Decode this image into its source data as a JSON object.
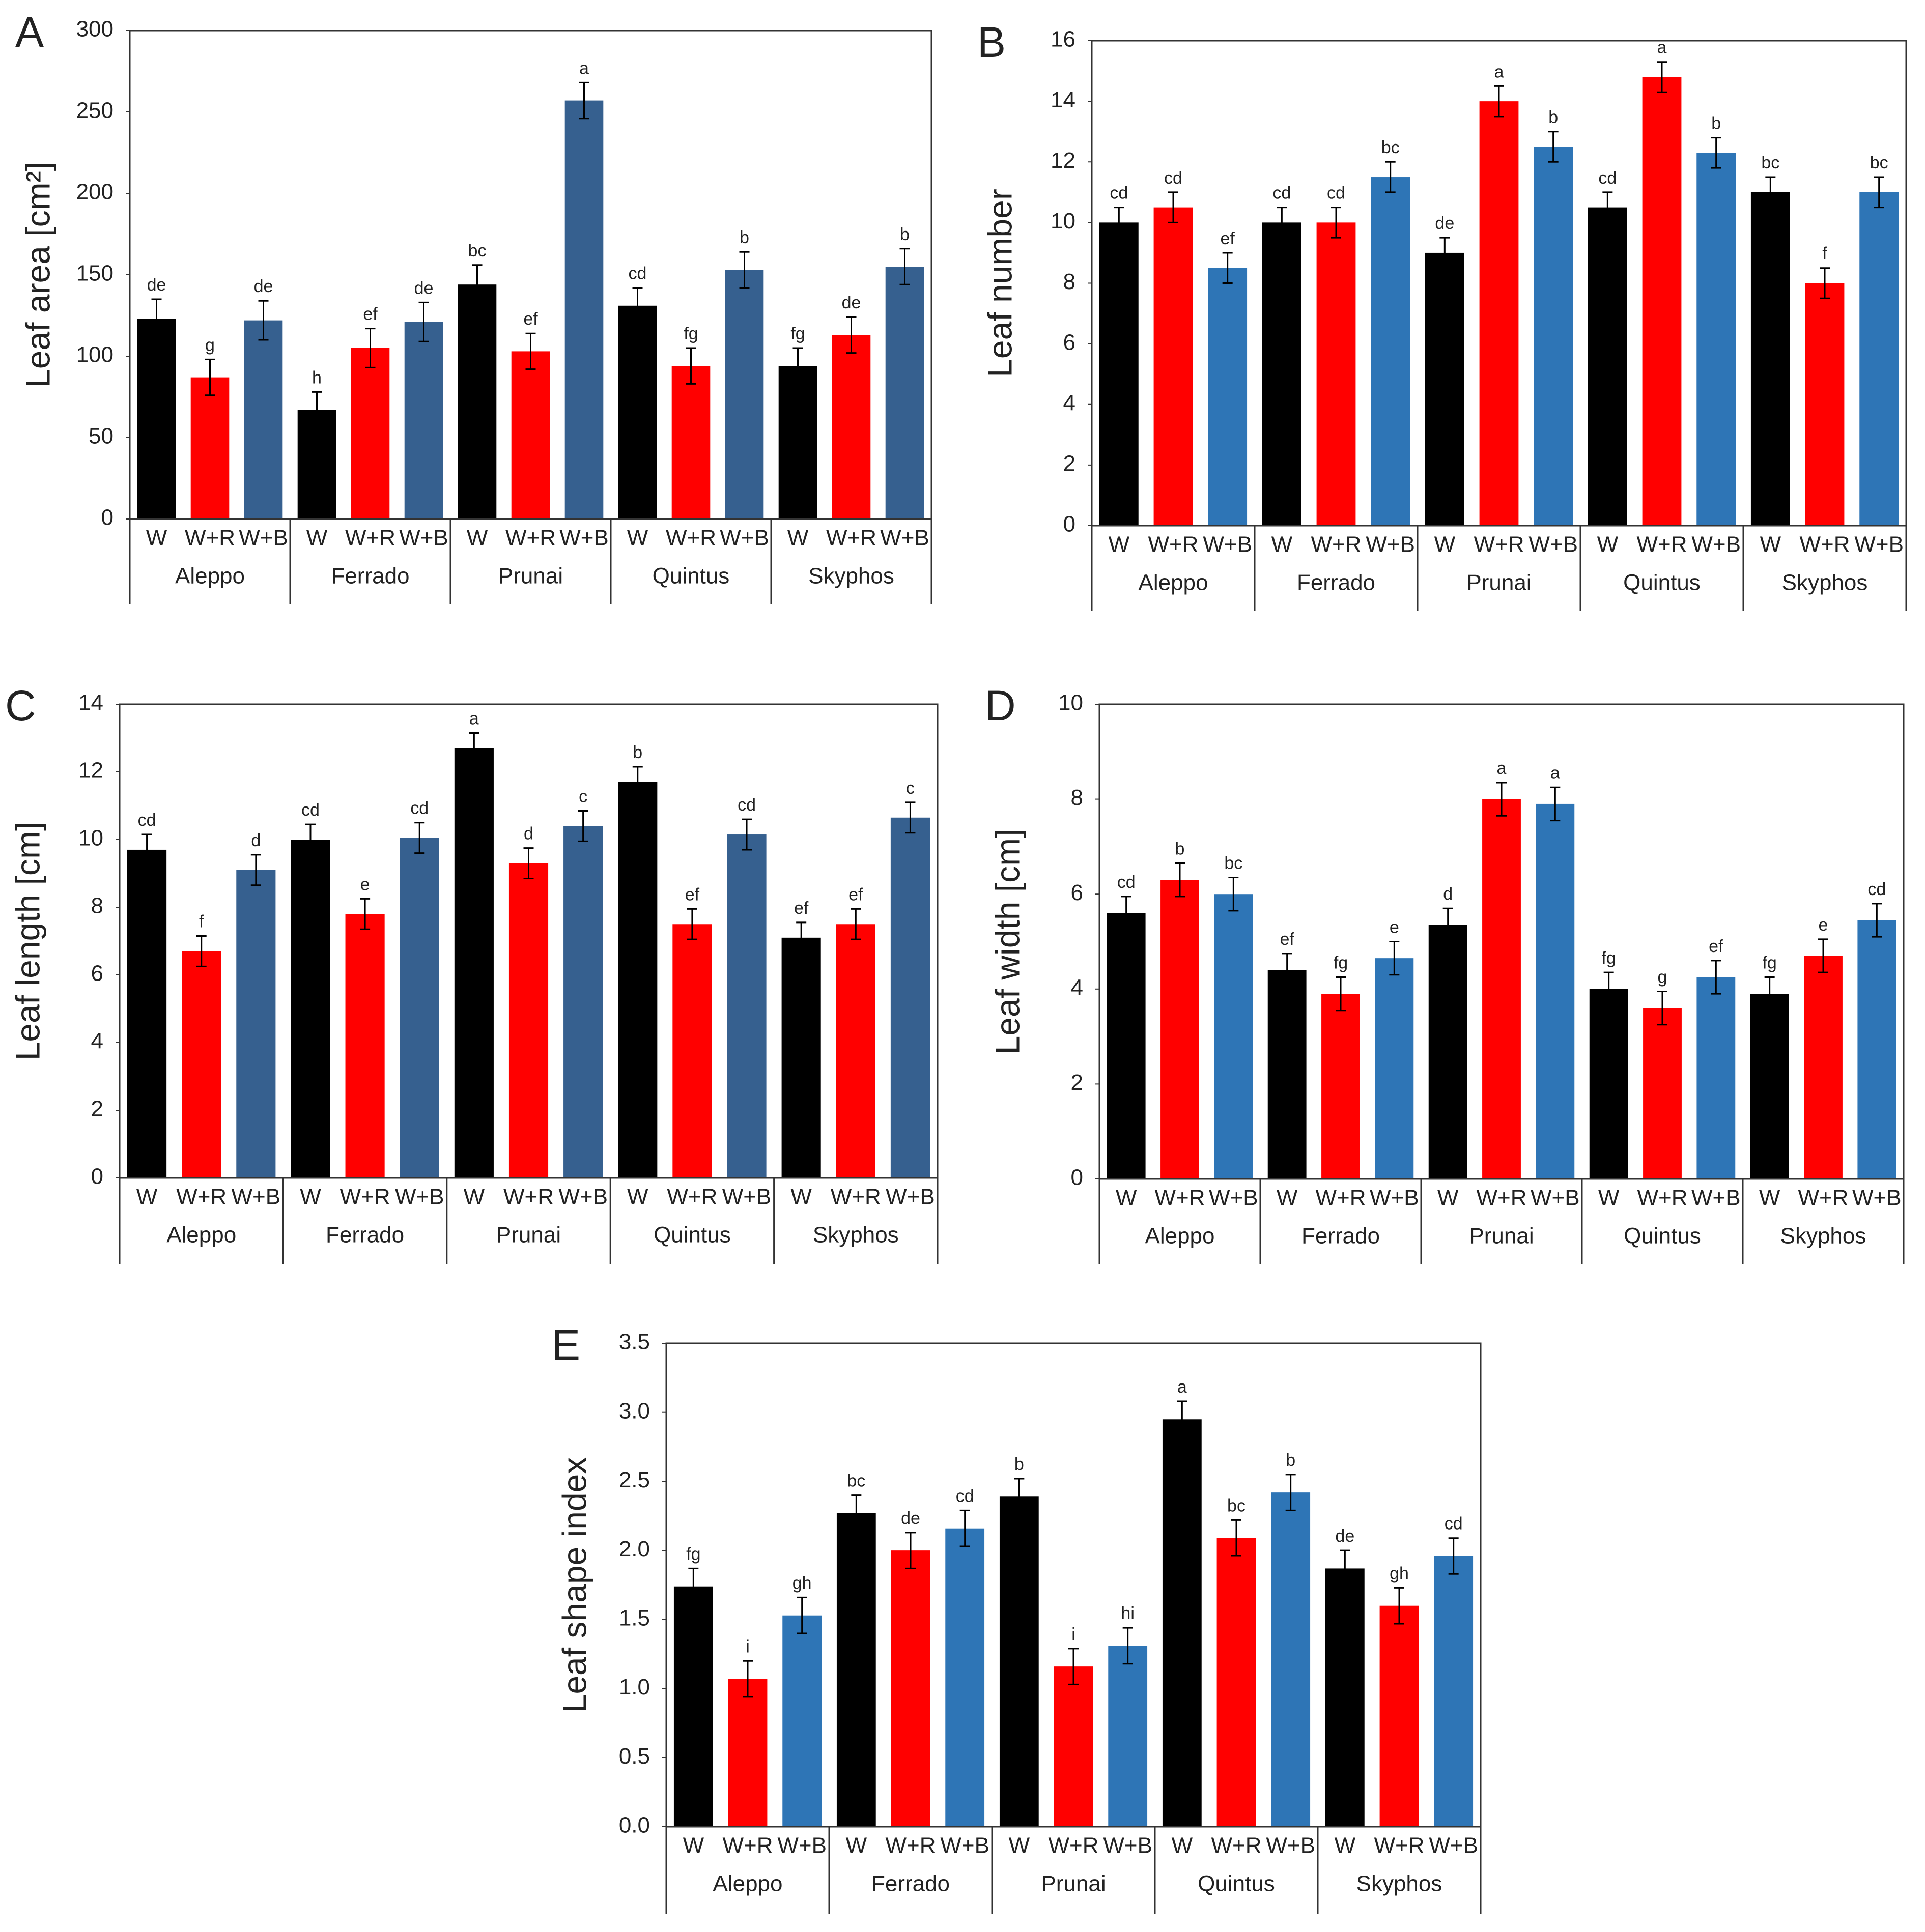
{
  "chart_data": [
    {
      "type": "bar",
      "panel": "A",
      "y_label": "Leaf area [cm²]",
      "categories": [
        "Aleppo",
        "Ferrado",
        "Prunai",
        "Quintus",
        "Skyphos"
      ],
      "series": [
        {
          "name": "W",
          "color": "#000000",
          "values": [
            123,
            67,
            144,
            131,
            94
          ],
          "errors": [
            12,
            11,
            12,
            11,
            11
          ],
          "letters": [
            "de",
            "h",
            "bc",
            "cd",
            "fg"
          ]
        },
        {
          "name": "W+R",
          "color": "#ff0000",
          "values": [
            87,
            105,
            103,
            94,
            113
          ],
          "errors": [
            11,
            12,
            11,
            11,
            11
          ],
          "letters": [
            "g",
            "ef",
            "ef",
            "fg",
            "de"
          ]
        },
        {
          "name": "W+B",
          "color": "#36608f",
          "values": [
            122,
            121,
            257,
            153,
            155
          ],
          "errors": [
            12,
            12,
            11,
            11,
            11
          ],
          "letters": [
            "de",
            "de",
            "a",
            "b",
            "b"
          ]
        }
      ],
      "ylim": [
        0,
        300
      ],
      "yticks": [
        0,
        50,
        100,
        150,
        200,
        250,
        300
      ]
    },
    {
      "type": "bar",
      "panel": "B",
      "y_label": "Leaf number",
      "categories": [
        "Aleppo",
        "Ferrado",
        "Prunai",
        "Quintus",
        "Skyphos"
      ],
      "series": [
        {
          "name": "W",
          "color": "#000000",
          "values": [
            10,
            10,
            9,
            10.5,
            11
          ],
          "errors": [
            0.5,
            0.5,
            0.5,
            0.5,
            0.5
          ],
          "letters": [
            "cd",
            "cd",
            "de",
            "cd",
            "bc"
          ]
        },
        {
          "name": "W+R",
          "color": "#ff0000",
          "values": [
            10.5,
            10,
            14,
            14.8,
            8
          ],
          "errors": [
            0.5,
            0.5,
            0.5,
            0.5,
            0.5
          ],
          "letters": [
            "cd",
            "cd",
            "a",
            "a",
            "f"
          ]
        },
        {
          "name": "W+B",
          "color": "#2e75b6",
          "values": [
            8.5,
            11.5,
            12.5,
            12.3,
            11
          ],
          "errors": [
            0.5,
            0.5,
            0.5,
            0.5,
            0.5
          ],
          "letters": [
            "ef",
            "bc",
            "b",
            "b",
            "bc"
          ]
        }
      ],
      "ylim": [
        0,
        16
      ],
      "yticks": [
        0,
        2,
        4,
        6,
        8,
        10,
        12,
        14,
        16
      ]
    },
    {
      "type": "bar",
      "panel": "C",
      "y_label": "Leaf length [cm]",
      "categories": [
        "Aleppo",
        "Ferrado",
        "Prunai",
        "Quintus",
        "Skyphos"
      ],
      "series": [
        {
          "name": "W",
          "color": "#000000",
          "values": [
            9.7,
            10,
            12.7,
            11.7,
            7.1
          ],
          "errors": [
            0.45,
            0.45,
            0.45,
            0.45,
            0.45
          ],
          "letters": [
            "cd",
            "cd",
            "a",
            "b",
            "ef"
          ]
        },
        {
          "name": "W+R",
          "color": "#ff0000",
          "values": [
            6.7,
            7.8,
            9.3,
            7.5,
            7.5
          ],
          "errors": [
            0.45,
            0.45,
            0.45,
            0.45,
            0.45
          ],
          "letters": [
            "f",
            "e",
            "d",
            "ef",
            "ef"
          ]
        },
        {
          "name": "W+B",
          "color": "#36608f",
          "values": [
            9.1,
            10.05,
            10.4,
            10.15,
            10.65
          ],
          "errors": [
            0.45,
            0.45,
            0.45,
            0.45,
            0.45
          ],
          "letters": [
            "d",
            "cd",
            "c",
            "cd",
            "c"
          ]
        }
      ],
      "ylim": [
        0,
        14
      ],
      "yticks": [
        0,
        2,
        4,
        6,
        8,
        10,
        12,
        14
      ]
    },
    {
      "type": "bar",
      "panel": "D",
      "y_label": "Leaf width [cm]",
      "categories": [
        "Aleppo",
        "Ferrado",
        "Prunai",
        "Quintus",
        "Skyphos"
      ],
      "series": [
        {
          "name": "W",
          "color": "#000000",
          "values": [
            5.6,
            4.4,
            5.35,
            4.0,
            3.9
          ],
          "errors": [
            0.35,
            0.35,
            0.35,
            0.35,
            0.35
          ],
          "letters": [
            "cd",
            "ef",
            "d",
            "fg",
            "fg"
          ]
        },
        {
          "name": "W+R",
          "color": "#ff0000",
          "values": [
            6.3,
            3.9,
            8.0,
            3.6,
            4.7
          ],
          "errors": [
            0.35,
            0.35,
            0.35,
            0.35,
            0.35
          ],
          "letters": [
            "b",
            "fg",
            "a",
            "g",
            "e"
          ]
        },
        {
          "name": "W+B",
          "color": "#2e75b6",
          "values": [
            6.0,
            4.65,
            7.9,
            4.25,
            5.45
          ],
          "errors": [
            0.35,
            0.35,
            0.35,
            0.35,
            0.35
          ],
          "letters": [
            "bc",
            "e",
            "a",
            "ef",
            "cd"
          ]
        }
      ],
      "ylim": [
        0,
        10
      ],
      "yticks": [
        0,
        2,
        4,
        6,
        8,
        10
      ]
    },
    {
      "type": "bar",
      "panel": "E",
      "y_label": "Leaf shape index",
      "categories": [
        "Aleppo",
        "Ferrado",
        "Prunai",
        "Quintus",
        "Skyphos"
      ],
      "series": [
        {
          "name": "W",
          "color": "#000000",
          "values": [
            1.74,
            2.27,
            2.39,
            2.95,
            1.87
          ],
          "errors": [
            0.13,
            0.13,
            0.13,
            0.13,
            0.13
          ],
          "letters": [
            "fg",
            "bc",
            "b",
            "a",
            "de"
          ]
        },
        {
          "name": "W+R",
          "color": "#ff0000",
          "values": [
            1.07,
            2.0,
            1.16,
            2.09,
            1.6
          ],
          "errors": [
            0.13,
            0.13,
            0.13,
            0.13,
            0.13
          ],
          "letters": [
            "i",
            "de",
            "i",
            "bc",
            "gh"
          ]
        },
        {
          "name": "W+B",
          "color": "#2e75b6",
          "values": [
            1.53,
            2.16,
            1.31,
            2.42,
            1.96
          ],
          "errors": [
            0.13,
            0.13,
            0.13,
            0.13,
            0.13
          ],
          "letters": [
            "gh",
            "cd",
            "hi",
            "b",
            "cd"
          ]
        }
      ],
      "ylim": [
        0,
        3.5
      ],
      "yticks": [
        {
          "value": 0,
          "label": "0.0"
        },
        0.5,
        {
          "value": 1,
          "label": "1.0"
        },
        1.5,
        {
          "value": 2,
          "label": "2.0"
        },
        2.5,
        {
          "value": 3,
          "label": "3.0"
        },
        3.5
      ]
    }
  ]
}
